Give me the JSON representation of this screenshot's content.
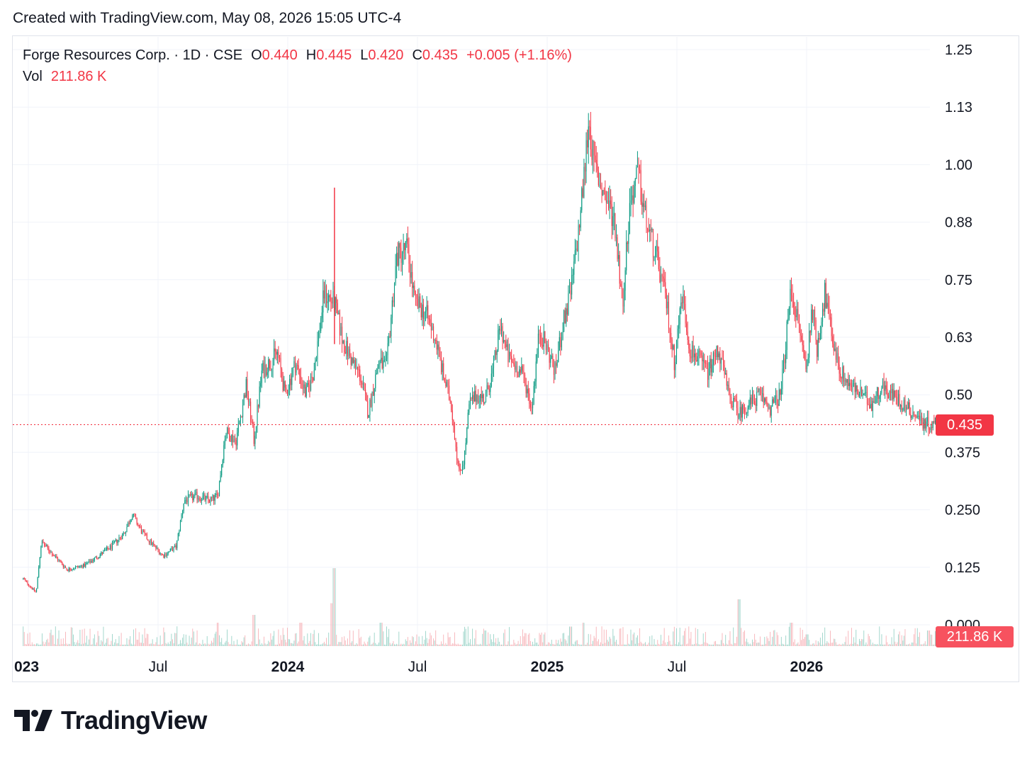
{
  "header": {
    "caption": "Created with TradingView.com, May 08, 2026 15:05 UTC-4"
  },
  "legend": {
    "symbol": "Forge Resources Corp. · 1D · CSE",
    "open_label": "O",
    "open": "0.440",
    "high_label": "H",
    "high": "0.445",
    "low_label": "L",
    "low": "0.420",
    "close_label": "C",
    "close": "0.435",
    "change": "+0.005 (+1.16%)",
    "vol_label": "Vol",
    "vol": "211.86 K"
  },
  "price_tag": "0.435",
  "vol_tag": "211.86 K",
  "logo": {
    "wordmark": "TradingView"
  },
  "colors": {
    "up": "#089981",
    "down": "#f23645",
    "grid": "#f0f3fa",
    "text": "#131722"
  },
  "chart_data": {
    "type": "candlestick",
    "title": "Forge Resources Corp. · 1D · CSE",
    "y_ticks": [
      "1.25",
      "1.13",
      "1.00",
      "0.88",
      "0.75",
      "0.63",
      "0.50",
      "0.375",
      "0.250",
      "0.125",
      "0.000"
    ],
    "x_ticks": [
      {
        "label": "023",
        "t": 0.0,
        "bold": true
      },
      {
        "label": "Jul",
        "t": 0.5,
        "bold": false
      },
      {
        "label": "2024",
        "t": 1.0,
        "bold": true
      },
      {
        "label": "Jul",
        "t": 1.5,
        "bold": false
      },
      {
        "label": "2025",
        "t": 2.0,
        "bold": true
      },
      {
        "label": "Jul",
        "t": 2.5,
        "bold": false
      },
      {
        "label": "2026",
        "t": 3.0,
        "bold": true
      }
    ],
    "ylim": [
      0,
      1.25
    ],
    "last_close": 0.435,
    "price_path": [
      [
        -0.02,
        0.1
      ],
      [
        0.03,
        0.07
      ],
      [
        0.05,
        0.18
      ],
      [
        0.1,
        0.15
      ],
      [
        0.15,
        0.12
      ],
      [
        0.22,
        0.13
      ],
      [
        0.27,
        0.15
      ],
      [
        0.32,
        0.17
      ],
      [
        0.37,
        0.2
      ],
      [
        0.4,
        0.24
      ],
      [
        0.44,
        0.2
      ],
      [
        0.47,
        0.18
      ],
      [
        0.52,
        0.15
      ],
      [
        0.57,
        0.17
      ],
      [
        0.6,
        0.27
      ],
      [
        0.65,
        0.28
      ],
      [
        0.7,
        0.27
      ],
      [
        0.73,
        0.28
      ],
      [
        0.76,
        0.42
      ],
      [
        0.8,
        0.4
      ],
      [
        0.84,
        0.52
      ],
      [
        0.87,
        0.4
      ],
      [
        0.9,
        0.55
      ],
      [
        0.93,
        0.57
      ],
      [
        0.96,
        0.59
      ],
      [
        0.99,
        0.5
      ],
      [
        1.03,
        0.57
      ],
      [
        1.07,
        0.5
      ],
      [
        1.1,
        0.55
      ],
      [
        1.14,
        0.72
      ],
      [
        1.18,
        0.7
      ],
      [
        1.21,
        0.62
      ],
      [
        1.25,
        0.57
      ],
      [
        1.28,
        0.54
      ],
      [
        1.31,
        0.46
      ],
      [
        1.35,
        0.57
      ],
      [
        1.38,
        0.56
      ],
      [
        1.42,
        0.8
      ],
      [
        1.46,
        0.82
      ],
      [
        1.49,
        0.7
      ],
      [
        1.53,
        0.68
      ],
      [
        1.57,
        0.62
      ],
      [
        1.6,
        0.54
      ],
      [
        1.63,
        0.48
      ],
      [
        1.66,
        0.33
      ],
      [
        1.68,
        0.36
      ],
      [
        1.7,
        0.48
      ],
      [
        1.73,
        0.5
      ],
      [
        1.76,
        0.49
      ],
      [
        1.79,
        0.55
      ],
      [
        1.82,
        0.65
      ],
      [
        1.85,
        0.58
      ],
      [
        1.88,
        0.56
      ],
      [
        1.91,
        0.54
      ],
      [
        1.94,
        0.47
      ],
      [
        1.97,
        0.64
      ],
      [
        2.0,
        0.6
      ],
      [
        2.03,
        0.55
      ],
      [
        2.06,
        0.65
      ],
      [
        2.09,
        0.72
      ],
      [
        2.12,
        0.85
      ],
      [
        2.14,
        0.96
      ],
      [
        2.16,
        1.1
      ],
      [
        2.18,
        1.0
      ],
      [
        2.21,
        0.95
      ],
      [
        2.23,
        0.92
      ],
      [
        2.26,
        0.88
      ],
      [
        2.29,
        0.7
      ],
      [
        2.32,
        0.92
      ],
      [
        2.35,
        0.98
      ],
      [
        2.38,
        0.88
      ],
      [
        2.42,
        0.8
      ],
      [
        2.46,
        0.7
      ],
      [
        2.49,
        0.57
      ],
      [
        2.52,
        0.72
      ],
      [
        2.55,
        0.6
      ],
      [
        2.58,
        0.58
      ],
      [
        2.62,
        0.55
      ],
      [
        2.66,
        0.6
      ],
      [
        2.7,
        0.5
      ],
      [
        2.74,
        0.46
      ],
      [
        2.78,
        0.48
      ],
      [
        2.82,
        0.5
      ],
      [
        2.86,
        0.47
      ],
      [
        2.9,
        0.5
      ],
      [
        2.94,
        0.73
      ],
      [
        2.97,
        0.65
      ],
      [
        3.0,
        0.55
      ],
      [
        3.02,
        0.7
      ],
      [
        3.04,
        0.6
      ],
      [
        3.07,
        0.72
      ],
      [
        3.1,
        0.62
      ],
      [
        3.13,
        0.55
      ],
      [
        3.17,
        0.52
      ],
      [
        3.21,
        0.5
      ],
      [
        3.25,
        0.48
      ],
      [
        3.29,
        0.52
      ],
      [
        3.33,
        0.5
      ],
      [
        3.37,
        0.48
      ],
      [
        3.41,
        0.46
      ],
      [
        3.45,
        0.44
      ],
      [
        3.49,
        0.435
      ]
    ],
    "volume_spikes": [
      [
        0.73,
        0.3
      ],
      [
        0.87,
        0.4
      ],
      [
        1.05,
        0.3
      ],
      [
        1.17,
        0.55
      ],
      [
        1.18,
        1.0
      ],
      [
        1.36,
        0.3
      ],
      [
        1.76,
        0.2
      ],
      [
        2.09,
        0.25
      ],
      [
        2.14,
        0.3
      ],
      [
        2.74,
        0.6
      ],
      [
        2.94,
        0.3
      ],
      [
        3.0,
        0.15
      ],
      [
        3.47,
        0.2
      ]
    ]
  }
}
